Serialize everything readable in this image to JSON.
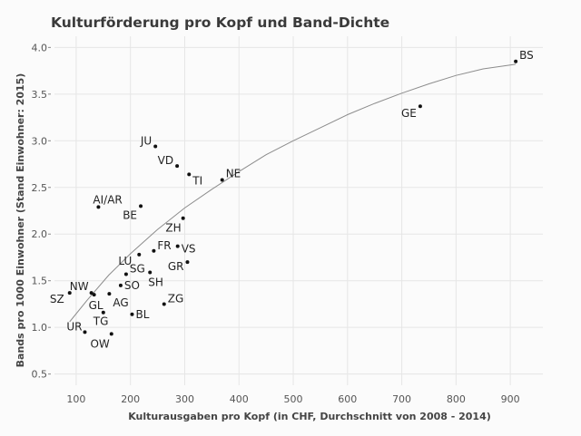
{
  "chart_data": {
    "type": "scatter",
    "title": "Kulturförderung pro Kopf und Band-Dichte",
    "xlabel": "Kulturausgaben pro Kopf (in CHF, Durchschnitt von 2008 - 2014)",
    "ylabel": "Bands pro 1000 Einwohner (Stand Einwohner: 2015)",
    "xlim": [
      60,
      960
    ],
    "ylim": [
      0.38,
      4.12
    ],
    "xticks": [
      100,
      200,
      300,
      400,
      500,
      600,
      700,
      800,
      900
    ],
    "yticks": [
      0.5,
      1.0,
      1.5,
      2.0,
      2.5,
      3.0,
      3.5,
      4.0
    ],
    "ytick_labels": [
      "0.5",
      "1.0",
      "1.5",
      "2.0",
      "2.5",
      "3.0",
      "3.5",
      "4.0"
    ],
    "grid": true,
    "trend_line": {
      "x": [
        88,
        120,
        160,
        200,
        250,
        300,
        350,
        400,
        450,
        500,
        550,
        600,
        650,
        700,
        750,
        800,
        850,
        910
      ],
      "y": [
        1.06,
        1.29,
        1.56,
        1.79,
        2.05,
        2.28,
        2.48,
        2.67,
        2.85,
        3.0,
        3.14,
        3.28,
        3.4,
        3.51,
        3.61,
        3.7,
        3.77,
        3.82
      ]
    },
    "points": [
      {
        "label": "BS",
        "x": 910,
        "y": 3.85
      },
      {
        "label": "GE",
        "x": 734,
        "y": 3.37
      },
      {
        "label": "JU",
        "x": 246,
        "y": 2.94
      },
      {
        "label": "VD",
        "x": 286,
        "y": 2.73
      },
      {
        "label": "TI",
        "x": 308,
        "y": 2.64
      },
      {
        "label": "NE",
        "x": 369,
        "y": 2.58
      },
      {
        "label": "AI/AR",
        "x": 141,
        "y": 2.29
      },
      {
        "label": "BE",
        "x": 219,
        "y": 2.3
      },
      {
        "label": "ZH",
        "x": 297,
        "y": 2.17
      },
      {
        "label": "FR",
        "x": 243,
        "y": 1.82
      },
      {
        "label": "VS",
        "x": 287,
        "y": 1.87
      },
      {
        "label": "LU",
        "x": 216,
        "y": 1.78
      },
      {
        "label": "SG",
        "x": 192,
        "y": 1.57
      },
      {
        "label": "GR",
        "x": 305,
        "y": 1.7
      },
      {
        "label": "SH",
        "x": 236,
        "y": 1.59
      },
      {
        "label": "NW",
        "x": 128,
        "y": 1.37
      },
      {
        "label": "SO",
        "x": 182,
        "y": 1.45
      },
      {
        "label": "SZ",
        "x": 88,
        "y": 1.37
      },
      {
        "label": "GL",
        "x": 133,
        "y": 1.35
      },
      {
        "label": "AG",
        "x": 161,
        "y": 1.36
      },
      {
        "label": "ZG",
        "x": 262,
        "y": 1.25
      },
      {
        "label": "TG",
        "x": 150,
        "y": 1.16
      },
      {
        "label": "BL",
        "x": 203,
        "y": 1.14
      },
      {
        "label": "UR",
        "x": 116,
        "y": 0.95
      },
      {
        "label": "OW",
        "x": 165,
        "y": 0.93
      }
    ]
  }
}
